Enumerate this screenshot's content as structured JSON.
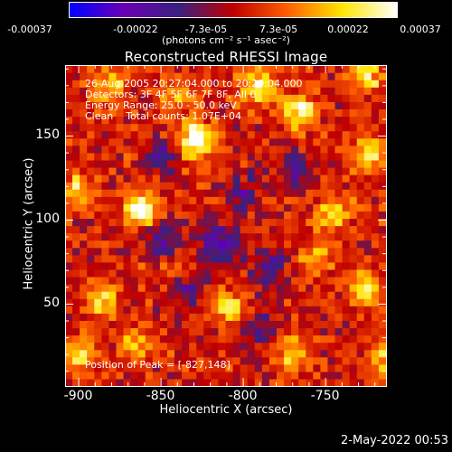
{
  "colorbar": {
    "tick_labels": [
      "-0.00037",
      "-0.00022",
      "-7.3e-05",
      "7.3e-05",
      "0.00022",
      "0.00037"
    ],
    "units_label": "(photons cm⁻² s⁻¹ asec⁻²)"
  },
  "chart_data": {
    "type": "heatmap",
    "title": "Reconstructed RHESSI Image",
    "xlabel": "Heliocentric X (arcsec)",
    "ylabel": "Heliocentric Y (arcsec)",
    "xlim": [
      -908,
      -713
    ],
    "ylim": [
      1,
      192
    ],
    "x_ticks": [
      -900,
      -850,
      -800,
      -750
    ],
    "y_ticks": [
      50,
      100,
      150
    ],
    "color_range": [
      -0.00037,
      0.00037
    ],
    "colormap": [
      "#0000ff",
      "#6a00b4",
      "#3a2080",
      "#c00000",
      "#ff6000",
      "#ffe600",
      "#ffffff"
    ],
    "peak": {
      "x": -827,
      "y": 148
    },
    "hot_spots": [
      {
        "x": -828,
        "y": 148,
        "value": 0.00037
      },
      {
        "x": -862,
        "y": 107,
        "value": 0.00034
      },
      {
        "x": -765,
        "y": 165,
        "value": 0.0003
      },
      {
        "x": -722,
        "y": 140,
        "value": 0.00025
      },
      {
        "x": -808,
        "y": 48,
        "value": 0.00022
      },
      {
        "x": -885,
        "y": 52,
        "value": 0.0002
      },
      {
        "x": -900,
        "y": 118,
        "value": 0.0002
      },
      {
        "x": -745,
        "y": 105,
        "value": 0.00024
      },
      {
        "x": -725,
        "y": 60,
        "value": 0.00022
      },
      {
        "x": -770,
        "y": 20,
        "value": 0.0002
      },
      {
        "x": -865,
        "y": 25,
        "value": 0.00018
      },
      {
        "x": -900,
        "y": 20,
        "value": 0.00022
      },
      {
        "x": -790,
        "y": 180,
        "value": 0.00025
      },
      {
        "x": -840,
        "y": 175,
        "value": 0.00018
      },
      {
        "x": -880,
        "y": 180,
        "value": 0.0002
      },
      {
        "x": -725,
        "y": 185,
        "value": 0.00022
      },
      {
        "x": -715,
        "y": 15,
        "value": 0.0002
      },
      {
        "x": -840,
        "y": 70,
        "value": 0.00012
      },
      {
        "x": -755,
        "y": 80,
        "value": 0.00015
      }
    ],
    "cold_spots": [
      {
        "x": -848,
        "y": 88,
        "value": -0.00022
      },
      {
        "x": -815,
        "y": 85,
        "value": -0.00028
      },
      {
        "x": -832,
        "y": 60,
        "value": -0.0002
      },
      {
        "x": -800,
        "y": 115,
        "value": -0.00018
      },
      {
        "x": -785,
        "y": 70,
        "value": -0.0002
      },
      {
        "x": -770,
        "y": 130,
        "value": -0.00015
      },
      {
        "x": -850,
        "y": 138,
        "value": -0.00015
      },
      {
        "x": -790,
        "y": 35,
        "value": -0.00015
      }
    ]
  },
  "annotations": {
    "time_range": "26-Aug-2005 20:27:04.000 to 20:29:04.000",
    "detectors": "Detectors: 3F 4F 5F 6F 7F 8F, All 0",
    "energy_range": "Energy Range: 25.0 - 50.0 keV",
    "method_counts": "Clean    Total counts: 1.07E+04",
    "peak_position": "Position of Peak = [-827,148]"
  },
  "footer": {
    "date_stamp": "2-May-2022 00:53"
  }
}
